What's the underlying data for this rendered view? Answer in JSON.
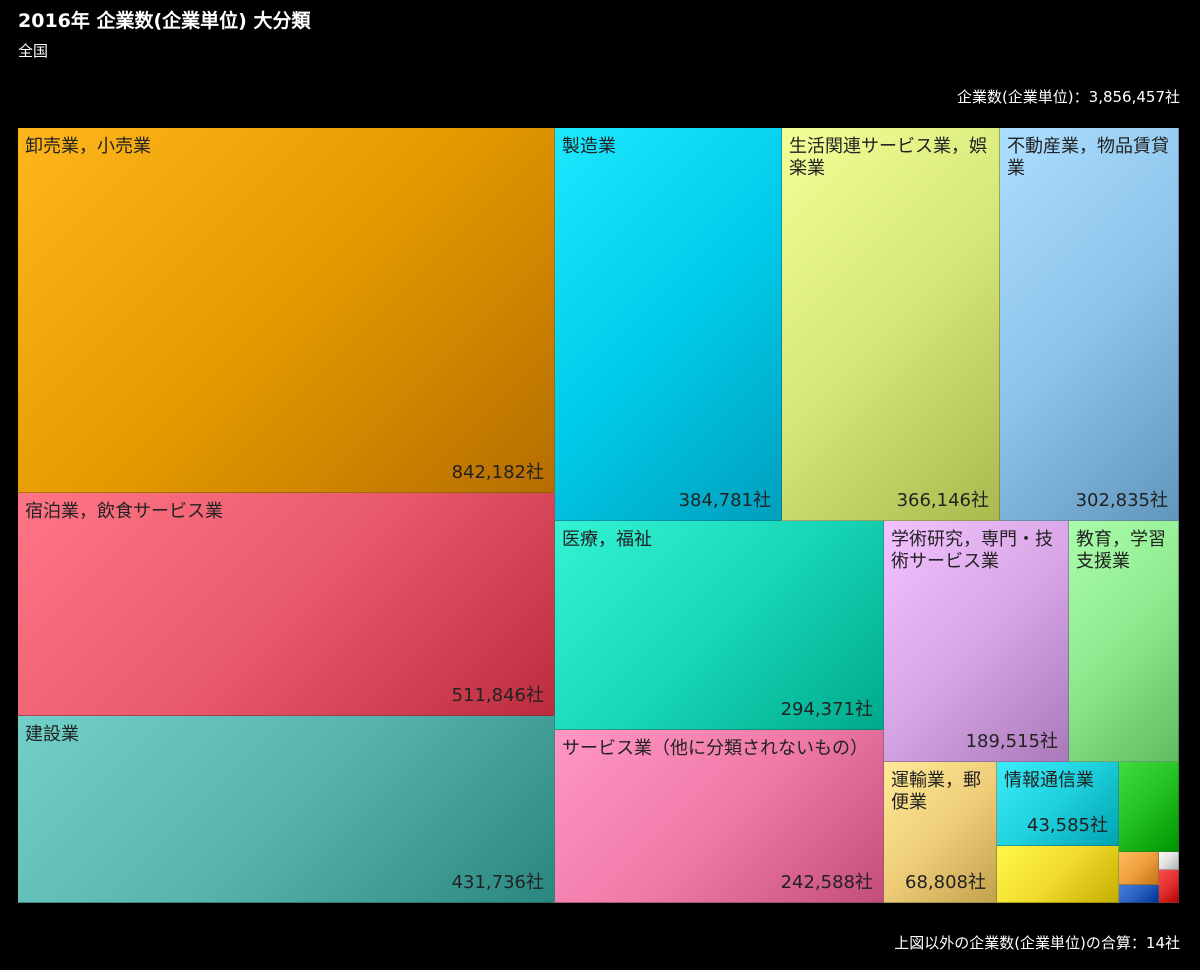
{
  "header": {
    "title": "2016年 企業数(企業単位) 大分類",
    "subtitle": "全国",
    "total_text": "企業数(企業単位)：3,856,457社",
    "footer_text": "上図以外の企業数(企業単位)の合算：14社"
  },
  "chart_data": {
    "type": "treemap",
    "title": "2016年 企業数(企業単位) 大分類",
    "subtitle": "全国",
    "total": 3856457,
    "unit": "社",
    "other_total": 14,
    "items": [
      {
        "name": "卸売業，小売業",
        "value": 842182,
        "value_label": "842,182社",
        "color": "#e39a00"
      },
      {
        "name": "宿泊業，飲食サービス業",
        "value": 511846,
        "value_label": "511,846社",
        "color": "#e85a6b"
      },
      {
        "name": "建設業",
        "value": 431736,
        "value_label": "431,736社",
        "color": "#56b4ac"
      },
      {
        "name": "製造業",
        "value": 384781,
        "value_label": "384,781社",
        "color": "#00ccea"
      },
      {
        "name": "生活関連サービス業，娯楽業",
        "value": 366146,
        "value_label": "366,146社",
        "color": "#d6e67a"
      },
      {
        "name": "不動産業，物品賃貸業",
        "value": 302835,
        "value_label": "302,835社",
        "color": "#8ec3ea"
      },
      {
        "name": "医療，福祉",
        "value": 294371,
        "value_label": "294,371社",
        "color": "#18d6b8"
      },
      {
        "name": "サービス業（他に分類されないもの）",
        "value": 242588,
        "value_label": "242,588社",
        "color": "#f07aa8"
      },
      {
        "name": "学術研究，専門・技術サービス業",
        "value": 189515,
        "value_label": "189,515社",
        "color": "#d7a6e6"
      },
      {
        "name": "教育，学習支援業",
        "value": 0,
        "value_label": "",
        "color": "#8ee88e"
      },
      {
        "name": "運輸業，郵便業",
        "value": 68808,
        "value_label": "68,808社",
        "color": "#efce7a"
      },
      {
        "name": "情報通信業",
        "value": 43585,
        "value_label": "43,585社",
        "color": "#1fd0dd"
      },
      {
        "name": "",
        "value": 0,
        "value_label": "",
        "color": "#f1db2d"
      },
      {
        "name": "",
        "value": 0,
        "value_label": "",
        "color": "#22c020"
      },
      {
        "name": "",
        "value": 0,
        "value_label": "",
        "color": "#f0a040"
      },
      {
        "name": "",
        "value": 0,
        "value_label": "",
        "color": "#2a60c0"
      },
      {
        "name": "",
        "value": 0,
        "value_label": "",
        "color": "#e0e0e0"
      },
      {
        "name": "",
        "value": 0,
        "value_label": "",
        "color": "#e03030"
      }
    ]
  }
}
